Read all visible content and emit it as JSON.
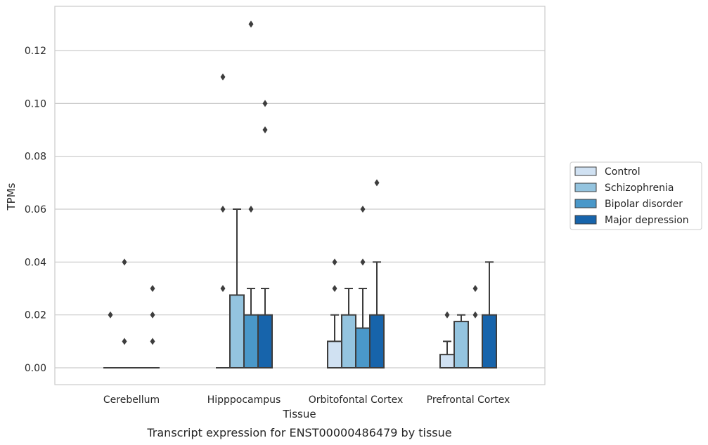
{
  "chart_data": {
    "type": "box",
    "caption": "Transcript expression for ENST00000486479 by tissue",
    "xlabel": "Tissue",
    "ylabel": "TPMs",
    "ylim": [
      -0.0065,
      0.1365
    ],
    "yticks": [
      0.0,
      0.02,
      0.04,
      0.06,
      0.08,
      0.1,
      0.12
    ],
    "ytick_labels": [
      "0.00",
      "0.02",
      "0.04",
      "0.06",
      "0.08",
      "0.10",
      "0.12"
    ],
    "categories": [
      "Cerebellum",
      "Hipppocampus",
      "Orbitofontal Cortex",
      "Prefrontal Cortex"
    ],
    "grid": "horizontal",
    "legend_position": "right",
    "series": [
      {
        "name": "Control",
        "color": "#d0e1f2",
        "boxes": [
          {
            "q1": 0,
            "median": 0,
            "q3": 0,
            "whisker_low": 0,
            "whisker_high": 0,
            "outliers": [
              0.02
            ]
          },
          {
            "q1": 0,
            "median": 0,
            "q3": 0,
            "whisker_low": 0,
            "whisker_high": 0,
            "outliers": [
              0.03,
              0.06,
              0.11
            ]
          },
          {
            "q1": 0,
            "median": 0,
            "q3": 0.01,
            "whisker_low": 0,
            "whisker_high": 0.02,
            "outliers": [
              0.03,
              0.04
            ]
          },
          {
            "q1": 0,
            "median": 0,
            "q3": 0.005,
            "whisker_low": 0,
            "whisker_high": 0.01,
            "outliers": [
              0.02
            ]
          }
        ]
      },
      {
        "name": "Schizophrenia",
        "color": "#94c4df",
        "boxes": [
          {
            "q1": 0,
            "median": 0,
            "q3": 0,
            "whisker_low": 0,
            "whisker_high": 0,
            "outliers": [
              0.01,
              0.04
            ]
          },
          {
            "q1": 0,
            "median": 0,
            "q3": 0.0275,
            "whisker_low": 0,
            "whisker_high": 0.06,
            "outliers": []
          },
          {
            "q1": 0,
            "median": 0,
            "q3": 0.02,
            "whisker_low": 0,
            "whisker_high": 0.03,
            "outliers": []
          },
          {
            "q1": 0,
            "median": 0,
            "q3": 0.0175,
            "whisker_low": 0,
            "whisker_high": 0.02,
            "outliers": []
          }
        ]
      },
      {
        "name": "Bipolar disorder",
        "color": "#4a98c9",
        "boxes": [
          {
            "q1": 0,
            "median": 0,
            "q3": 0,
            "whisker_low": 0,
            "whisker_high": 0,
            "outliers": []
          },
          {
            "q1": 0,
            "median": 0,
            "q3": 0.02,
            "whisker_low": 0,
            "whisker_high": 0.03,
            "outliers": [
              0.06,
              0.13
            ]
          },
          {
            "q1": 0,
            "median": 0,
            "q3": 0.015,
            "whisker_low": 0,
            "whisker_high": 0.03,
            "outliers": [
              0.04,
              0.06
            ]
          },
          {
            "q1": 0,
            "median": 0,
            "q3": 0,
            "whisker_low": 0,
            "whisker_high": 0,
            "outliers": [
              0.02,
              0.03
            ]
          }
        ]
      },
      {
        "name": "Major depression",
        "color": "#1764ab",
        "boxes": [
          {
            "q1": 0,
            "median": 0,
            "q3": 0,
            "whisker_low": 0,
            "whisker_high": 0,
            "outliers": [
              0.01,
              0.02,
              0.03
            ]
          },
          {
            "q1": 0,
            "median": 0,
            "q3": 0.02,
            "whisker_low": 0,
            "whisker_high": 0.03,
            "outliers": [
              0.09,
              0.1
            ]
          },
          {
            "q1": 0,
            "median": 0,
            "q3": 0.02,
            "whisker_low": 0,
            "whisker_high": 0.04,
            "outliers": [
              0.07
            ]
          },
          {
            "q1": 0,
            "median": 0,
            "q3": 0.02,
            "whisker_low": 0,
            "whisker_high": 0.04,
            "outliers": []
          }
        ]
      }
    ]
  }
}
